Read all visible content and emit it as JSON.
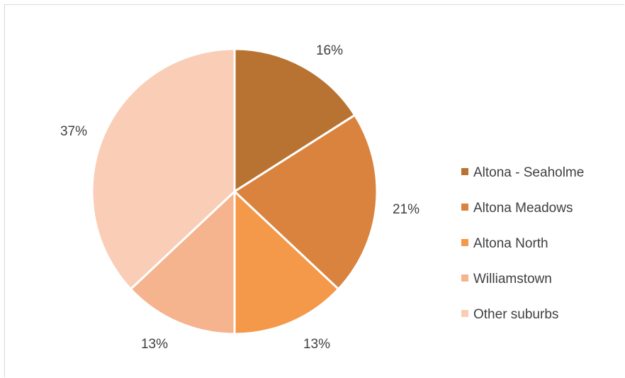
{
  "chart_data": {
    "type": "pie",
    "title": "",
    "legend_position": "right",
    "slices": [
      {
        "label": "Altona - Seaholme",
        "value": 16,
        "display": "16%",
        "color": "#b87333"
      },
      {
        "label": "Altona Meadows",
        "value": 21,
        "display": "21%",
        "color": "#d9833e"
      },
      {
        "label": "Altona North",
        "value": 13,
        "display": "13%",
        "color": "#f4984a"
      },
      {
        "label": "Williamstown",
        "value": 13,
        "display": "13%",
        "color": "#f5b38e"
      },
      {
        "label": "Other suburbs",
        "value": 37,
        "display": "37%",
        "color": "#f9cdb6"
      }
    ]
  }
}
